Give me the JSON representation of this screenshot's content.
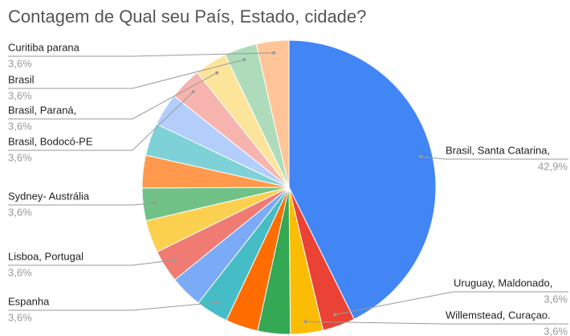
{
  "chart_data": {
    "type": "pie",
    "title": "Contagem de Qual seu País, Estado, cidade?",
    "categories": [
      "Brasil, Santa Catarina,",
      "Uruguay, Maldonado,",
      "Willemstead, Curaçao.",
      null,
      null,
      "Espanha",
      null,
      "Lisboa, Portugal",
      null,
      "Sydney- Austrália",
      null,
      null,
      null,
      "Brasil,  Bodocó-PE",
      "Brasil, Paraná,",
      "Brasil",
      "Curitiba parana"
    ],
    "values": [
      42.9,
      3.6,
      3.6,
      3.6,
      3.6,
      3.6,
      3.6,
      3.6,
      3.6,
      3.6,
      3.6,
      3.6,
      3.6,
      3.6,
      3.6,
      3.6,
      3.6
    ],
    "value_labels": [
      "42,9%",
      "3,6%",
      "3,6%",
      null,
      null,
      "3,6%",
      null,
      "3,6%",
      null,
      "3,6%",
      null,
      null,
      null,
      "3,6%",
      "3,6%",
      "3,6%",
      "3,6%"
    ],
    "colors": [
      "#4285f4",
      "#ea4335",
      "#fbbc04",
      "#34a853",
      "#ff6d01",
      "#46bdc6",
      "#7baaf7",
      "#f07b72",
      "#fcd04f",
      "#71c287",
      "#ff994d",
      "#7ed1d7",
      "#b3cefb",
      "#f7b4ae",
      "#fde49b",
      "#aedcba",
      "#ffc599"
    ]
  }
}
